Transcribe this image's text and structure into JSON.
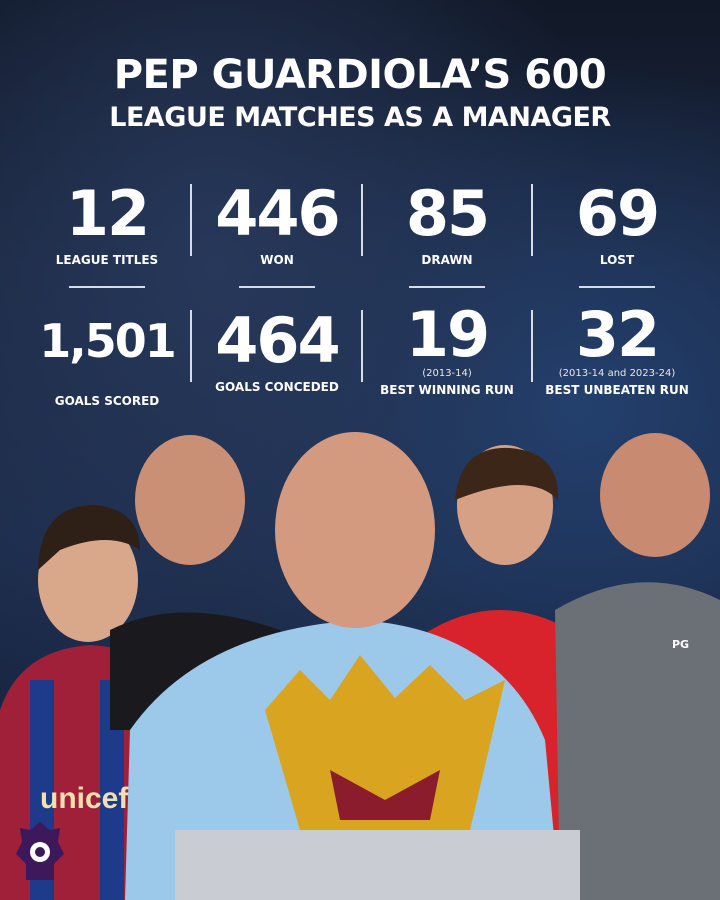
{
  "title": {
    "line1": "PEP GUARDIOLA’S 600",
    "line2": "LEAGUE MATCHES AS A MANAGER"
  },
  "stats_row1": [
    {
      "value": "12",
      "label": "LEAGUE TITLES"
    },
    {
      "value": "446",
      "label": "WON"
    },
    {
      "value": "85",
      "label": "DRAWN"
    },
    {
      "value": "69",
      "label": "LOST"
    }
  ],
  "stats_row2": [
    {
      "value": "1,501",
      "note": "",
      "label": "GOALS SCORED"
    },
    {
      "value": "464",
      "note": "",
      "label": "GOALS CONCEDED"
    },
    {
      "value": "19",
      "note": "(2013-14)",
      "label": "BEST WINNING RUN"
    },
    {
      "value": "32",
      "note": "(2013-14 and 2023-24)",
      "label": "BEST UNBEATEN RUN"
    }
  ],
  "photo": {
    "jersey_sponsor": "unicef",
    "initials": "PG"
  },
  "colors": {
    "background": "#1b2740",
    "text": "#ffffff",
    "premier_league": "#3d195b"
  },
  "logo": {
    "icon": "premier-league-lion-icon"
  }
}
